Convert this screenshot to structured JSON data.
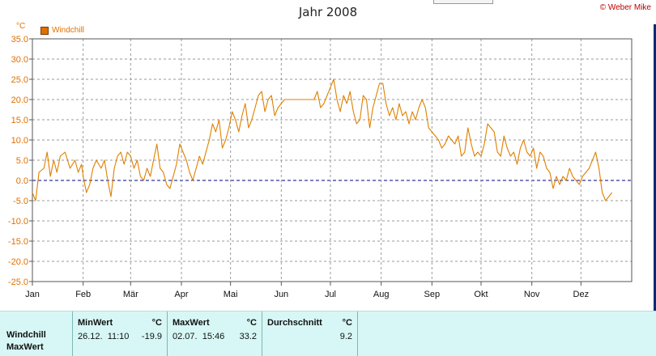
{
  "window": {
    "copyright": "© Weber Mike"
  },
  "chart_data": {
    "type": "line",
    "title": "Jahr 2008",
    "ylabel": "°C",
    "ylim": [
      -25,
      35
    ],
    "yticks": [
      35,
      30,
      25,
      20,
      15,
      10,
      5,
      0,
      -5,
      -10,
      -15,
      -20,
      -25
    ],
    "ytick_labels": [
      "35.0",
      "30.0",
      "25.0",
      "20.0",
      "15.0",
      "10.0",
      "5.0",
      "0.0",
      "-5.0",
      "-10.0",
      "-15.0",
      "-20.0",
      "-25.0"
    ],
    "xlim": [
      0,
      366
    ],
    "month_labels": [
      "Jan",
      "Feb",
      "Mär",
      "Apr",
      "Mai",
      "Jun",
      "Jul",
      "Aug",
      "Sep",
      "Okt",
      "Nov",
      "Dez"
    ],
    "month_starts": [
      0,
      31,
      60,
      91,
      121,
      152,
      182,
      213,
      244,
      274,
      305,
      335
    ],
    "grid": true,
    "legend_position": "top-left",
    "series": [
      {
        "name": "Windchill",
        "color": "#e08000",
        "points": [
          [
            0,
            -3
          ],
          [
            2,
            -5
          ],
          [
            4,
            2
          ],
          [
            7,
            3
          ],
          [
            9,
            7
          ],
          [
            11,
            1
          ],
          [
            13,
            5
          ],
          [
            15,
            2
          ],
          [
            17,
            6
          ],
          [
            20,
            7
          ],
          [
            23,
            3
          ],
          [
            26,
            5
          ],
          [
            28,
            2
          ],
          [
            30,
            4
          ],
          [
            31,
            1
          ],
          [
            33,
            -3
          ],
          [
            35,
            -1
          ],
          [
            37,
            3
          ],
          [
            39,
            5
          ],
          [
            42,
            3
          ],
          [
            44,
            5
          ],
          [
            46,
            0
          ],
          [
            48,
            -4
          ],
          [
            50,
            3
          ],
          [
            52,
            6
          ],
          [
            54,
            7
          ],
          [
            56,
            4
          ],
          [
            58,
            7
          ],
          [
            60,
            6
          ],
          [
            62,
            3
          ],
          [
            64,
            5
          ],
          [
            66,
            1
          ],
          [
            68,
            0
          ],
          [
            70,
            3
          ],
          [
            72,
            1
          ],
          [
            74,
            5
          ],
          [
            76,
            9
          ],
          [
            78,
            3
          ],
          [
            80,
            2
          ],
          [
            82,
            -1
          ],
          [
            84,
            -2
          ],
          [
            86,
            1
          ],
          [
            88,
            4
          ],
          [
            90,
            9
          ],
          [
            92,
            7
          ],
          [
            94,
            5
          ],
          [
            96,
            2
          ],
          [
            98,
            0
          ],
          [
            100,
            3
          ],
          [
            102,
            6
          ],
          [
            104,
            4
          ],
          [
            106,
            7
          ],
          [
            108,
            10
          ],
          [
            110,
            14
          ],
          [
            112,
            12
          ],
          [
            114,
            15
          ],
          [
            116,
            8
          ],
          [
            118,
            10
          ],
          [
            120,
            13
          ],
          [
            122,
            17
          ],
          [
            124,
            15
          ],
          [
            126,
            12
          ],
          [
            128,
            16
          ],
          [
            130,
            19
          ],
          [
            132,
            13
          ],
          [
            134,
            15
          ],
          [
            136,
            18
          ],
          [
            138,
            21
          ],
          [
            140,
            22
          ],
          [
            142,
            17
          ],
          [
            144,
            20
          ],
          [
            146,
            21
          ],
          [
            148,
            16
          ],
          [
            150,
            18
          ],
          [
            152,
            19
          ],
          [
            154,
            20
          ],
          [
            156,
            20
          ],
          [
            160,
            20
          ],
          [
            164,
            20
          ],
          [
            168,
            20
          ],
          [
            172,
            20
          ],
          [
            174,
            22
          ],
          [
            176,
            18
          ],
          [
            178,
            19
          ],
          [
            180,
            21
          ],
          [
            182,
            23
          ],
          [
            184,
            25
          ],
          [
            186,
            20
          ],
          [
            188,
            17
          ],
          [
            190,
            21
          ],
          [
            192,
            19
          ],
          [
            194,
            22
          ],
          [
            196,
            17
          ],
          [
            198,
            14
          ],
          [
            200,
            15
          ],
          [
            202,
            21
          ],
          [
            204,
            20
          ],
          [
            206,
            13
          ],
          [
            208,
            18
          ],
          [
            210,
            21
          ],
          [
            212,
            24
          ],
          [
            214,
            24
          ],
          [
            216,
            19
          ],
          [
            218,
            16
          ],
          [
            220,
            18
          ],
          [
            222,
            15
          ],
          [
            224,
            19
          ],
          [
            226,
            16
          ],
          [
            228,
            17
          ],
          [
            230,
            14
          ],
          [
            232,
            17
          ],
          [
            234,
            15
          ],
          [
            236,
            18
          ],
          [
            238,
            20
          ],
          [
            240,
            18
          ],
          [
            242,
            13
          ],
          [
            244,
            12
          ],
          [
            246,
            11
          ],
          [
            248,
            10
          ],
          [
            250,
            8
          ],
          [
            252,
            9
          ],
          [
            254,
            11
          ],
          [
            256,
            10
          ],
          [
            258,
            9
          ],
          [
            260,
            11
          ],
          [
            262,
            6
          ],
          [
            264,
            7
          ],
          [
            266,
            13
          ],
          [
            268,
            9
          ],
          [
            270,
            6
          ],
          [
            272,
            7
          ],
          [
            274,
            6
          ],
          [
            276,
            9
          ],
          [
            278,
            14
          ],
          [
            280,
            13
          ],
          [
            282,
            12
          ],
          [
            284,
            7
          ],
          [
            286,
            6
          ],
          [
            288,
            11
          ],
          [
            290,
            8
          ],
          [
            292,
            6
          ],
          [
            294,
            7
          ],
          [
            296,
            4
          ],
          [
            298,
            8
          ],
          [
            300,
            10
          ],
          [
            302,
            7
          ],
          [
            304,
            6
          ],
          [
            306,
            8
          ],
          [
            308,
            3
          ],
          [
            310,
            7
          ],
          [
            312,
            6
          ],
          [
            314,
            3
          ],
          [
            316,
            2
          ],
          [
            318,
            -2
          ],
          [
            320,
            1
          ],
          [
            322,
            -1
          ],
          [
            324,
            1
          ],
          [
            326,
            0
          ],
          [
            328,
            3
          ],
          [
            330,
            1
          ],
          [
            332,
            0
          ],
          [
            334,
            -1
          ],
          [
            336,
            1
          ],
          [
            338,
            2
          ],
          [
            340,
            3
          ],
          [
            342,
            5
          ],
          [
            344,
            7
          ],
          [
            346,
            3
          ],
          [
            348,
            -3
          ],
          [
            350,
            -5
          ],
          [
            352,
            -4
          ],
          [
            354,
            -3
          ]
        ]
      }
    ]
  },
  "stats": {
    "row_labels": [
      "Windchill",
      "MaxWert"
    ],
    "columns": [
      {
        "header": "MinWert",
        "unit": "°C",
        "date": "26.12.  11:10",
        "value": "-19.9"
      },
      {
        "header": "MaxWert",
        "unit": "°C",
        "date": "02.07.  15:46",
        "value": "33.2"
      },
      {
        "header": "Durchschnitt",
        "unit": "°C",
        "date": "",
        "value": "9.2"
      }
    ]
  }
}
